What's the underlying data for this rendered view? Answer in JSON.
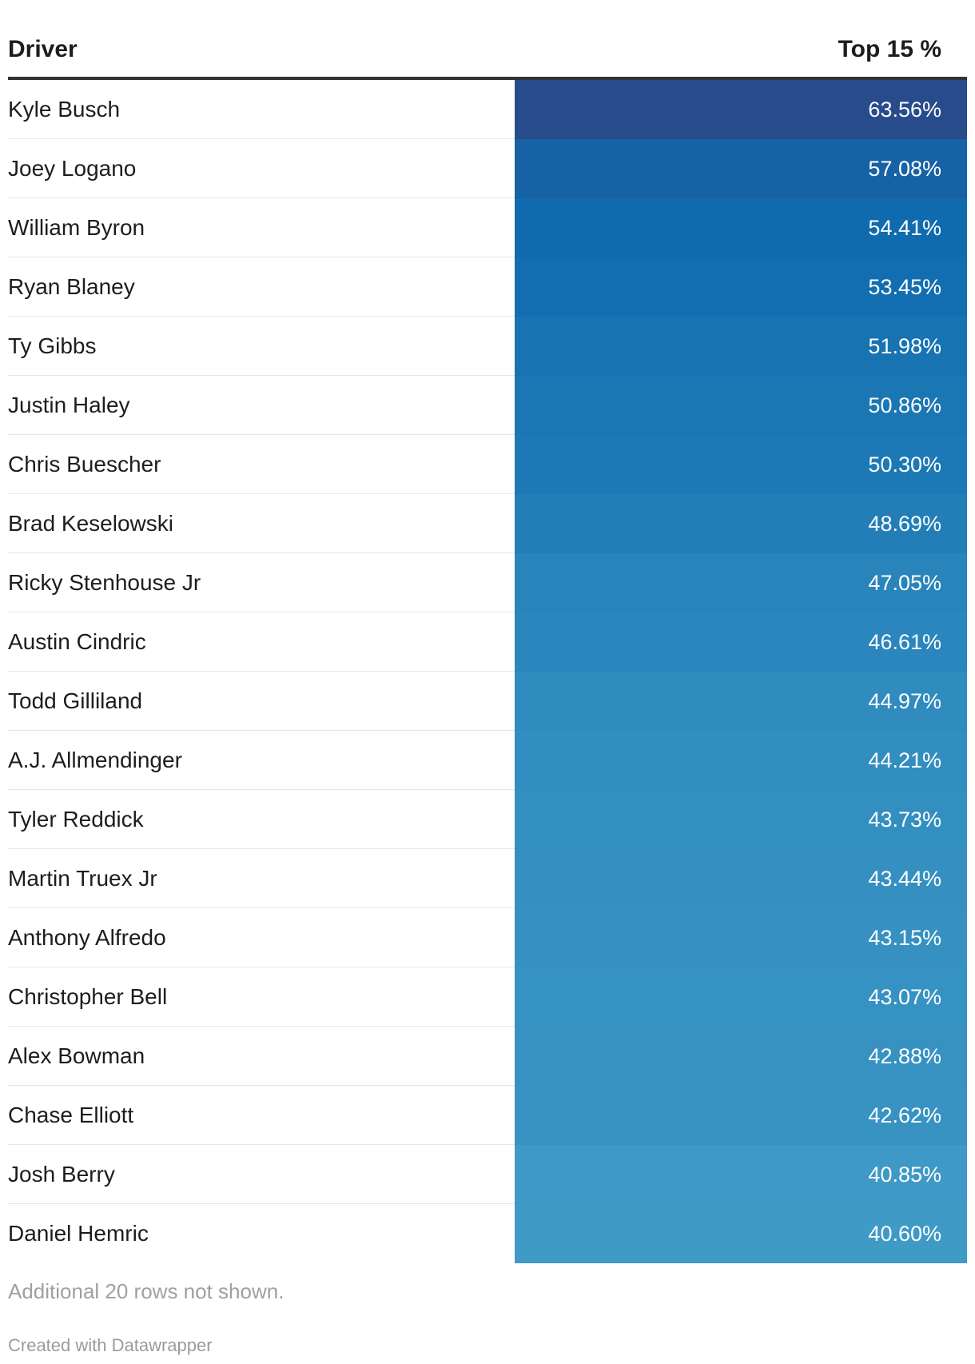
{
  "chart_data": {
    "type": "table",
    "columns": [
      "Driver",
      "Top 15 %"
    ],
    "rows": [
      {
        "driver": "Kyle Busch",
        "value": 63.56,
        "label": "63.56%"
      },
      {
        "driver": "Joey Logano",
        "value": 57.08,
        "label": "57.08%"
      },
      {
        "driver": "William Byron",
        "value": 54.41,
        "label": "54.41%"
      },
      {
        "driver": "Ryan Blaney",
        "value": 53.45,
        "label": "53.45%"
      },
      {
        "driver": "Ty Gibbs",
        "value": 51.98,
        "label": "51.98%"
      },
      {
        "driver": "Justin Haley",
        "value": 50.86,
        "label": "50.86%"
      },
      {
        "driver": "Chris Buescher",
        "value": 50.3,
        "label": "50.30%"
      },
      {
        "driver": "Brad Keselowski",
        "value": 48.69,
        "label": "48.69%"
      },
      {
        "driver": "Ricky Stenhouse Jr",
        "value": 47.05,
        "label": "47.05%"
      },
      {
        "driver": "Austin Cindric",
        "value": 46.61,
        "label": "46.61%"
      },
      {
        "driver": "Todd Gilliland",
        "value": 44.97,
        "label": "44.97%"
      },
      {
        "driver": "A.J. Allmendinger",
        "value": 44.21,
        "label": "44.21%"
      },
      {
        "driver": "Tyler Reddick",
        "value": 43.73,
        "label": "43.73%"
      },
      {
        "driver": "Martin Truex Jr",
        "value": 43.44,
        "label": "43.44%"
      },
      {
        "driver": "Anthony Alfredo",
        "value": 43.15,
        "label": "43.15%"
      },
      {
        "driver": "Christopher Bell",
        "value": 43.07,
        "label": "43.07%"
      },
      {
        "driver": "Alex Bowman",
        "value": 42.88,
        "label": "42.88%"
      },
      {
        "driver": "Chase Elliott",
        "value": 42.62,
        "label": "42.62%"
      },
      {
        "driver": "Josh Berry",
        "value": 40.85,
        "label": "40.85%"
      },
      {
        "driver": "Daniel Hemric",
        "value": 40.6,
        "label": "40.60%"
      }
    ],
    "color_scale": {
      "min_value": 40.6,
      "max_value": 63.56,
      "min_color": "#3f9ac6",
      "mid_value": 54.41,
      "mid_color": "#0f6bae",
      "max_color": "#284b8b"
    }
  },
  "table": {
    "header_driver": "Driver",
    "header_value": "Top 15 %"
  },
  "footer": {
    "note": "Additional 20 rows not shown.",
    "credit": "Created with Datawrapper"
  }
}
